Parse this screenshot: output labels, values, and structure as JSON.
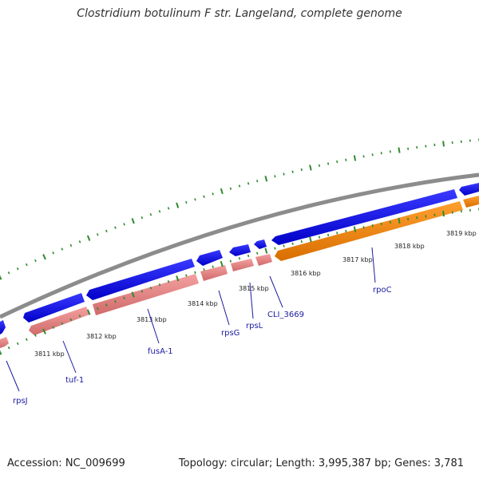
{
  "title": "Clostridium botulinum F str. Langeland, complete genome",
  "footer": {
    "accession": "Accession: NC_009699",
    "summary": "Topology: circular; Length: 3,995,387 bp; Genes: 3,781"
  },
  "colors": {
    "forward_gene": "#0000ee",
    "reverse_gene": "#e88b8b",
    "reverse_gene_alt": "#ff8c00",
    "backbone": "#8c8c8c",
    "ticks": "#2e8b2e",
    "gene_label": "#1a1aa0"
  },
  "scale_labels": [
    "3811 kbp",
    "3812 kbp",
    "3813 kbp",
    "3814 kbp",
    "3815 kbp",
    "3816 kbp",
    "3817 kbp",
    "3818 kbp",
    "3819 kbp"
  ],
  "gene_labels": [
    "rpsJ",
    "tuf-1",
    "fusA-1",
    "rpsG",
    "rpsL",
    "CLI_3669",
    "rpoC"
  ]
}
